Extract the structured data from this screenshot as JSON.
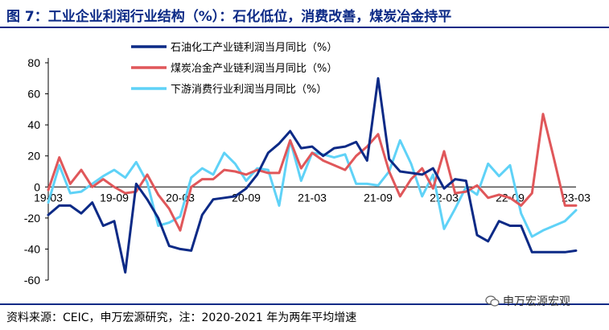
{
  "title": "图 7：工业企业利润行业结构（%）：石化低位，消费改善，煤炭冶金持平",
  "source": "资料来源：CEIC，申万宏源研究，注：2020-2021 年为两年平均增速",
  "watermark": "申万宏源宏观",
  "colors": {
    "title": "#0c2a86",
    "s1": "#0c2a86",
    "s2": "#e0575a",
    "s3": "#5fd2f7"
  },
  "chart_data": {
    "type": "line",
    "x": [
      "2019-03",
      "2019-04",
      "2019-05",
      "2019-06",
      "2019-07",
      "2019-08",
      "2019-09",
      "2019-10",
      "2019-11",
      "2019-12",
      "2020-01",
      "2020-02",
      "2020-03",
      "2020-04",
      "2020-05",
      "2020-06",
      "2020-07",
      "2020-08",
      "2020-09",
      "2020-10",
      "2020-11",
      "2020-12",
      "2021-01",
      "2021-02",
      "2021-03",
      "2021-04",
      "2021-05",
      "2021-06",
      "2021-07",
      "2021-08",
      "2021-09",
      "2021-10",
      "2021-11",
      "2021-12",
      "2022-01",
      "2022-02",
      "2022-03",
      "2022-04",
      "2022-05",
      "2022-06",
      "2022-07",
      "2022-08",
      "2022-09",
      "2022-10",
      "2022-11",
      "2022-12",
      "2023-01",
      "2023-02",
      "2023-03"
    ],
    "x_tick_labels": [
      "19-03",
      "19-09",
      "20-03",
      "20-09",
      "21-03",
      "21-09",
      "22-03",
      "22-09",
      "23-03"
    ],
    "ylim": [
      -60,
      80
    ],
    "yticks": [
      -60,
      -40,
      -20,
      0,
      20,
      40,
      60,
      80
    ],
    "series": [
      {
        "name": "石油化工产业链利润当月同比（%）",
        "color": "#0c2a86",
        "values": [
          -18,
          -12,
          -12,
          -17,
          -10,
          -25,
          -22,
          -55,
          2,
          -8,
          -20,
          -38,
          -40,
          -41,
          -18,
          -8,
          -7,
          -6,
          -1,
          8,
          22,
          28,
          36,
          25,
          26,
          20,
          25,
          26,
          29,
          17,
          70,
          18,
          10,
          9,
          8,
          12,
          -1,
          5,
          4,
          -31,
          -35,
          -22,
          -25,
          -25,
          -42,
          -42,
          -42,
          -42,
          -41
        ]
      },
      {
        "name": "煤炭冶金产业链利润当月同比（%）",
        "color": "#e0575a",
        "values": [
          -2,
          19,
          2,
          11,
          0,
          5,
          0,
          -4,
          -3,
          8,
          -5,
          -14,
          -28,
          0,
          5,
          5,
          11,
          10,
          8,
          11,
          9,
          9,
          30,
          12,
          22,
          17,
          14,
          11,
          20,
          26,
          34,
          10,
          -6,
          5,
          12,
          -1,
          23,
          -4,
          -3,
          1,
          -7,
          -5,
          -7,
          -12,
          -4,
          47,
          18,
          -12,
          -12
        ]
      },
      {
        "name": "下游消费行业利润当月同比（%）",
        "color": "#5fd2f7",
        "values": [
          -10,
          14,
          -4,
          -3,
          2,
          7,
          11,
          6,
          16,
          3,
          -25,
          -23,
          -19,
          6,
          12,
          8,
          22,
          15,
          4,
          12,
          11,
          -12,
          30,
          4,
          22,
          21,
          19,
          21,
          2,
          2,
          1,
          10,
          30,
          15,
          -6,
          8,
          -27,
          -14,
          0,
          -5,
          15,
          7,
          14,
          -17,
          -32,
          -28,
          -25,
          -22,
          -15
        ]
      }
    ]
  }
}
